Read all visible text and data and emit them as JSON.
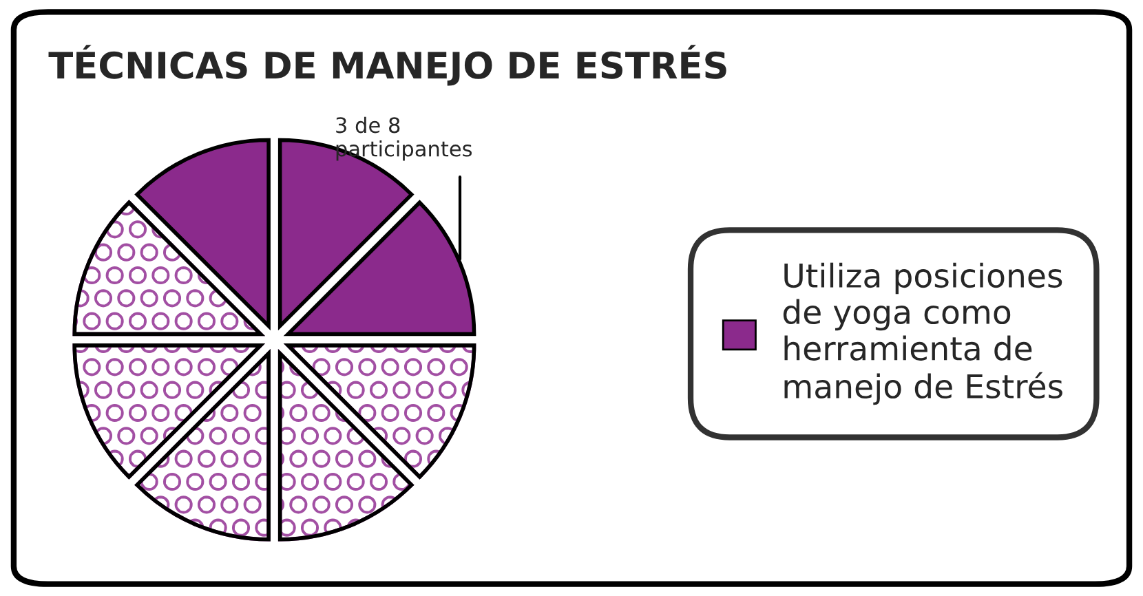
{
  "chart_data": {
    "type": "pie",
    "title": "TÉCNICAS DE MANEJO DE ESTRÉS",
    "categories": [
      "Utiliza posiciones de yoga como herramienta de manejo de Estrés",
      null,
      null,
      null,
      null,
      null,
      null,
      null
    ],
    "values": [
      12.5,
      12.5,
      12.5,
      12.5,
      12.5,
      12.5,
      12.5,
      12.5
    ],
    "colors": [
      "#8b2a8c",
      "#8b2a8c",
      "#a24fa3",
      "#a24fa3",
      "#a24fa3",
      "#a24fa3",
      "#a24fa3",
      "#8b2a8c"
    ],
    "annotations": [
      "3 de 8\nparticipantes"
    ],
    "legend": "right"
  }
}
